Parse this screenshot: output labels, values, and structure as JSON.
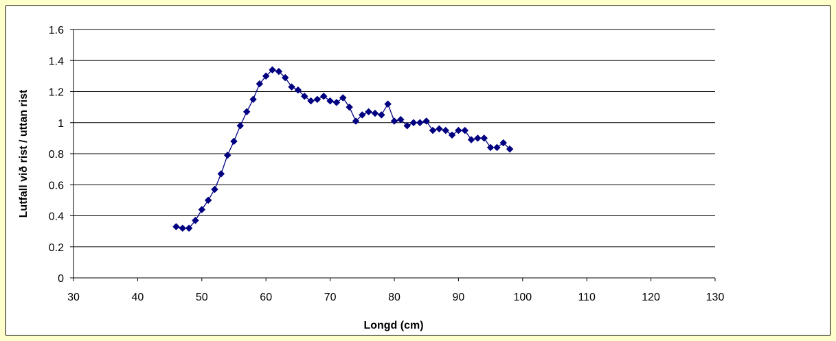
{
  "chart_data": {
    "type": "line",
    "title": "",
    "xlabel": "Longd (cm)",
    "ylabel": "Lutfall við rist / uttan rist",
    "xlim": [
      30,
      130
    ],
    "ylim": [
      0,
      1.6
    ],
    "x_ticks": [
      "30",
      "40",
      "50",
      "60",
      "70",
      "80",
      "90",
      "100",
      "110",
      "120",
      "130"
    ],
    "y_ticks": [
      "0",
      "0.2",
      "0.4",
      "0.6",
      "0.8",
      "1",
      "1.2",
      "1.4",
      "1.6"
    ],
    "grid": "horizontal",
    "legend": "none",
    "marker": "diamond",
    "series": [
      {
        "color": "#000080",
        "x": [
          46,
          47,
          48,
          49,
          50,
          51,
          52,
          53,
          54,
          55,
          56,
          57,
          58,
          59,
          60,
          61,
          62,
          63,
          64,
          65,
          66,
          67,
          68,
          69,
          70,
          71,
          72,
          73,
          74,
          75,
          76,
          77,
          78,
          79,
          80,
          81,
          82,
          83,
          84,
          85,
          86,
          87,
          88,
          89,
          90,
          91,
          92,
          93,
          94,
          95,
          96,
          97,
          98
        ],
        "y": [
          0.33,
          0.32,
          0.32,
          0.37,
          0.44,
          0.5,
          0.57,
          0.67,
          0.79,
          0.88,
          0.98,
          1.07,
          1.15,
          1.25,
          1.3,
          1.34,
          1.33,
          1.29,
          1.23,
          1.21,
          1.17,
          1.14,
          1.15,
          1.17,
          1.14,
          1.13,
          1.16,
          1.1,
          1.01,
          1.05,
          1.07,
          1.06,
          1.05,
          1.12,
          1.01,
          1.02,
          0.98,
          1.0,
          1.0,
          1.01,
          0.95,
          0.96,
          0.95,
          0.92,
          0.95,
          0.95,
          0.89,
          0.9,
          0.9,
          0.84,
          0.84,
          0.87,
          0.83
        ]
      }
    ]
  }
}
